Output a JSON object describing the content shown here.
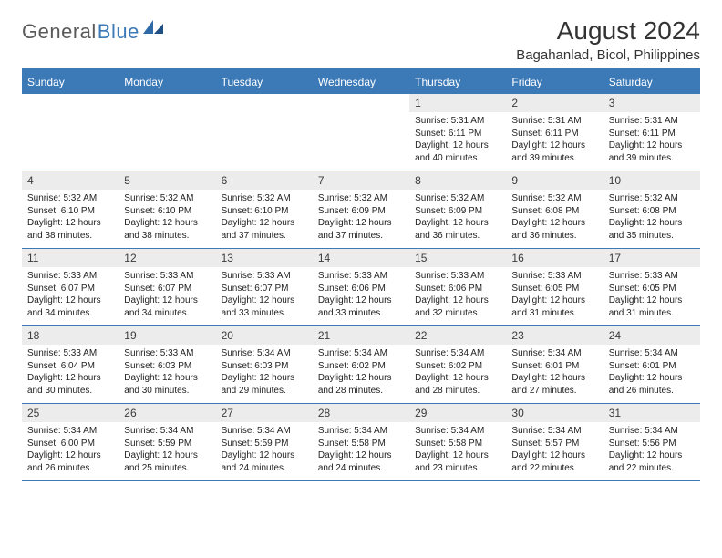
{
  "logo": {
    "general": "General",
    "blue": "Blue"
  },
  "title": "August 2024",
  "location": "Bagahanlad, Bicol, Philippines",
  "colors": {
    "brand_blue": "#3b79b7",
    "header_text": "#ffffff",
    "daynum_bg": "#ececec",
    "text": "#222222",
    "logo_gray": "#5a5a5a"
  },
  "typography": {
    "title_fontsize": 28,
    "location_fontsize": 15,
    "dayhdr_fontsize": 12,
    "daynum_fontsize": 12,
    "body_fontsize": 10
  },
  "day_headers": [
    "Sunday",
    "Monday",
    "Tuesday",
    "Wednesday",
    "Thursday",
    "Friday",
    "Saturday"
  ],
  "weeks": [
    [
      {
        "n": "",
        "sr": "",
        "ss": "",
        "dl": ""
      },
      {
        "n": "",
        "sr": "",
        "ss": "",
        "dl": ""
      },
      {
        "n": "",
        "sr": "",
        "ss": "",
        "dl": ""
      },
      {
        "n": "",
        "sr": "",
        "ss": "",
        "dl": ""
      },
      {
        "n": "1",
        "sr": "Sunrise: 5:31 AM",
        "ss": "Sunset: 6:11 PM",
        "dl": "Daylight: 12 hours and 40 minutes."
      },
      {
        "n": "2",
        "sr": "Sunrise: 5:31 AM",
        "ss": "Sunset: 6:11 PM",
        "dl": "Daylight: 12 hours and 39 minutes."
      },
      {
        "n": "3",
        "sr": "Sunrise: 5:31 AM",
        "ss": "Sunset: 6:11 PM",
        "dl": "Daylight: 12 hours and 39 minutes."
      }
    ],
    [
      {
        "n": "4",
        "sr": "Sunrise: 5:32 AM",
        "ss": "Sunset: 6:10 PM",
        "dl": "Daylight: 12 hours and 38 minutes."
      },
      {
        "n": "5",
        "sr": "Sunrise: 5:32 AM",
        "ss": "Sunset: 6:10 PM",
        "dl": "Daylight: 12 hours and 38 minutes."
      },
      {
        "n": "6",
        "sr": "Sunrise: 5:32 AM",
        "ss": "Sunset: 6:10 PM",
        "dl": "Daylight: 12 hours and 37 minutes."
      },
      {
        "n": "7",
        "sr": "Sunrise: 5:32 AM",
        "ss": "Sunset: 6:09 PM",
        "dl": "Daylight: 12 hours and 37 minutes."
      },
      {
        "n": "8",
        "sr": "Sunrise: 5:32 AM",
        "ss": "Sunset: 6:09 PM",
        "dl": "Daylight: 12 hours and 36 minutes."
      },
      {
        "n": "9",
        "sr": "Sunrise: 5:32 AM",
        "ss": "Sunset: 6:08 PM",
        "dl": "Daylight: 12 hours and 36 minutes."
      },
      {
        "n": "10",
        "sr": "Sunrise: 5:32 AM",
        "ss": "Sunset: 6:08 PM",
        "dl": "Daylight: 12 hours and 35 minutes."
      }
    ],
    [
      {
        "n": "11",
        "sr": "Sunrise: 5:33 AM",
        "ss": "Sunset: 6:07 PM",
        "dl": "Daylight: 12 hours and 34 minutes."
      },
      {
        "n": "12",
        "sr": "Sunrise: 5:33 AM",
        "ss": "Sunset: 6:07 PM",
        "dl": "Daylight: 12 hours and 34 minutes."
      },
      {
        "n": "13",
        "sr": "Sunrise: 5:33 AM",
        "ss": "Sunset: 6:07 PM",
        "dl": "Daylight: 12 hours and 33 minutes."
      },
      {
        "n": "14",
        "sr": "Sunrise: 5:33 AM",
        "ss": "Sunset: 6:06 PM",
        "dl": "Daylight: 12 hours and 33 minutes."
      },
      {
        "n": "15",
        "sr": "Sunrise: 5:33 AM",
        "ss": "Sunset: 6:06 PM",
        "dl": "Daylight: 12 hours and 32 minutes."
      },
      {
        "n": "16",
        "sr": "Sunrise: 5:33 AM",
        "ss": "Sunset: 6:05 PM",
        "dl": "Daylight: 12 hours and 31 minutes."
      },
      {
        "n": "17",
        "sr": "Sunrise: 5:33 AM",
        "ss": "Sunset: 6:05 PM",
        "dl": "Daylight: 12 hours and 31 minutes."
      }
    ],
    [
      {
        "n": "18",
        "sr": "Sunrise: 5:33 AM",
        "ss": "Sunset: 6:04 PM",
        "dl": "Daylight: 12 hours and 30 minutes."
      },
      {
        "n": "19",
        "sr": "Sunrise: 5:33 AM",
        "ss": "Sunset: 6:03 PM",
        "dl": "Daylight: 12 hours and 30 minutes."
      },
      {
        "n": "20",
        "sr": "Sunrise: 5:34 AM",
        "ss": "Sunset: 6:03 PM",
        "dl": "Daylight: 12 hours and 29 minutes."
      },
      {
        "n": "21",
        "sr": "Sunrise: 5:34 AM",
        "ss": "Sunset: 6:02 PM",
        "dl": "Daylight: 12 hours and 28 minutes."
      },
      {
        "n": "22",
        "sr": "Sunrise: 5:34 AM",
        "ss": "Sunset: 6:02 PM",
        "dl": "Daylight: 12 hours and 28 minutes."
      },
      {
        "n": "23",
        "sr": "Sunrise: 5:34 AM",
        "ss": "Sunset: 6:01 PM",
        "dl": "Daylight: 12 hours and 27 minutes."
      },
      {
        "n": "24",
        "sr": "Sunrise: 5:34 AM",
        "ss": "Sunset: 6:01 PM",
        "dl": "Daylight: 12 hours and 26 minutes."
      }
    ],
    [
      {
        "n": "25",
        "sr": "Sunrise: 5:34 AM",
        "ss": "Sunset: 6:00 PM",
        "dl": "Daylight: 12 hours and 26 minutes."
      },
      {
        "n": "26",
        "sr": "Sunrise: 5:34 AM",
        "ss": "Sunset: 5:59 PM",
        "dl": "Daylight: 12 hours and 25 minutes."
      },
      {
        "n": "27",
        "sr": "Sunrise: 5:34 AM",
        "ss": "Sunset: 5:59 PM",
        "dl": "Daylight: 12 hours and 24 minutes."
      },
      {
        "n": "28",
        "sr": "Sunrise: 5:34 AM",
        "ss": "Sunset: 5:58 PM",
        "dl": "Daylight: 12 hours and 24 minutes."
      },
      {
        "n": "29",
        "sr": "Sunrise: 5:34 AM",
        "ss": "Sunset: 5:58 PM",
        "dl": "Daylight: 12 hours and 23 minutes."
      },
      {
        "n": "30",
        "sr": "Sunrise: 5:34 AM",
        "ss": "Sunset: 5:57 PM",
        "dl": "Daylight: 12 hours and 22 minutes."
      },
      {
        "n": "31",
        "sr": "Sunrise: 5:34 AM",
        "ss": "Sunset: 5:56 PM",
        "dl": "Daylight: 12 hours and 22 minutes."
      }
    ]
  ]
}
